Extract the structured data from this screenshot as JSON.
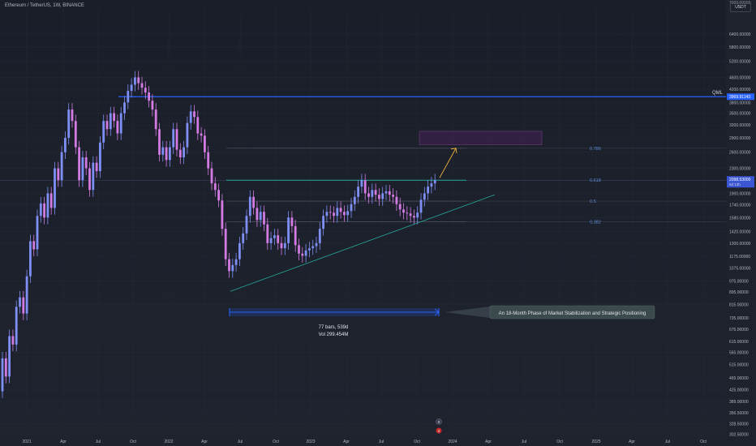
{
  "header": {
    "title": "Ethereum / TetherUS, 1W, BINANCE",
    "currency": "USDT"
  },
  "chart_data": {
    "type": "candlestick",
    "scale": "log",
    "ylim": [
      300,
      7800
    ],
    "price_ticks": [
      6400,
      5800,
      5200,
      4600,
      4200,
      3800,
      3500,
      3200,
      2900,
      2600,
      2300,
      1900,
      1740,
      1580,
      1420,
      1300,
      1175,
      1075,
      975,
      895,
      815,
      735,
      675,
      615,
      565,
      515,
      465,
      425,
      389,
      356.5,
      328.5,
      302.5
    ],
    "price_tick_labels": [
      "6400.00000",
      "5800.00000",
      "5200.00000",
      "4600.00000",
      "4200.00000",
      "3800.00000",
      "3500.00000",
      "3200.00000",
      "2900.00000",
      "2600.00000",
      "2300.00000",
      "1900.00000",
      "1740.00000",
      "1580.00000",
      "1420.00000",
      "1300.00000",
      "1175.00000",
      "1075.00000",
      "975.00000",
      "895.00000",
      "815.00000",
      "735.00000",
      "675.00000",
      "615.00000",
      "565.00000",
      "515.00000",
      "465.00000",
      "425.00000",
      "389.00000",
      "356.50000",
      "328.50000",
      "302.50000"
    ],
    "top_partial_tick": "7000.00000",
    "time_labels": [
      "2021",
      "Apr",
      "Jul",
      "Oct",
      "2022",
      "Apr",
      "Jul",
      "Oct",
      "2023",
      "Apr",
      "Jul",
      "Oct",
      "2024",
      "Apr",
      "Jul",
      "Oct",
      "2025",
      "Apr",
      "Jul",
      "Oct"
    ],
    "candles": [
      [
        0,
        420,
        540
      ],
      [
        1,
        540,
        470
      ],
      [
        2,
        470,
        640
      ],
      [
        3,
        640,
        600
      ],
      [
        4,
        600,
        800
      ],
      [
        5,
        800,
        860
      ],
      [
        6,
        860,
        760
      ],
      [
        7,
        760,
        1010
      ],
      [
        8,
        1010,
        1320
      ],
      [
        9,
        1320,
        1240
      ],
      [
        10,
        1240,
        1600
      ],
      [
        11,
        1600,
        1760
      ],
      [
        12,
        1760,
        1580
      ],
      [
        13,
        1580,
        1900
      ],
      [
        14,
        1900,
        1700
      ],
      [
        15,
        1700,
        2300
      ],
      [
        16,
        2300,
        2100
      ],
      [
        17,
        2100,
        2600
      ],
      [
        18,
        2600,
        2900
      ],
      [
        19,
        2900,
        3600
      ],
      [
        20,
        3600,
        3300
      ],
      [
        21,
        3300,
        2700
      ],
      [
        22,
        2700,
        2100
      ],
      [
        23,
        2100,
        2500
      ],
      [
        24,
        2500,
        2300
      ],
      [
        25,
        2300,
        1950
      ],
      [
        26,
        1950,
        2400
      ],
      [
        27,
        2400,
        2250
      ],
      [
        28,
        2250,
        2800
      ],
      [
        29,
        2800,
        3300
      ],
      [
        30,
        3300,
        3100
      ],
      [
        31,
        3100,
        3500
      ],
      [
        32,
        3500,
        3300
      ],
      [
        33,
        3300,
        3000
      ],
      [
        34,
        3000,
        3500
      ],
      [
        35,
        3500,
        3800
      ],
      [
        36,
        3800,
        4150
      ],
      [
        37,
        4150,
        4350
      ],
      [
        38,
        4350,
        4600
      ],
      [
        39,
        4600,
        4400
      ],
      [
        40,
        4400,
        4250
      ],
      [
        41,
        4250,
        4100
      ],
      [
        42,
        4100,
        3850
      ],
      [
        43,
        3850,
        3600
      ],
      [
        44,
        3600,
        3100
      ],
      [
        45,
        3100,
        2550
      ],
      [
        46,
        2550,
        2700
      ],
      [
        47,
        2700,
        2450
      ],
      [
        48,
        2450,
        2700
      ],
      [
        49,
        2700,
        3100
      ],
      [
        50,
        3100,
        2650
      ],
      [
        51,
        2650,
        2500
      ],
      [
        52,
        2500,
        2700
      ],
      [
        53,
        2700,
        3250
      ],
      [
        54,
        3250,
        3550
      ],
      [
        55,
        3550,
        3400
      ],
      [
        56,
        3400,
        3000
      ],
      [
        57,
        3000,
        2950
      ],
      [
        58,
        2950,
        2600
      ],
      [
        59,
        2600,
        2300
      ],
      [
        60,
        2300,
        2050
      ],
      [
        61,
        2050,
        1950
      ],
      [
        62,
        1950,
        1800
      ],
      [
        63,
        1800,
        1450
      ],
      [
        64,
        1450,
        1150
      ],
      [
        65,
        1150,
        1050
      ],
      [
        66,
        1050,
        1100
      ],
      [
        67,
        1100,
        1150
      ],
      [
        68,
        1150,
        1300
      ],
      [
        69,
        1300,
        1400
      ],
      [
        70,
        1400,
        1600
      ],
      [
        71,
        1600,
        1850
      ],
      [
        72,
        1850,
        1700
      ],
      [
        73,
        1700,
        1550
      ],
      [
        74,
        1550,
        1650
      ],
      [
        75,
        1650,
        1500
      ],
      [
        76,
        1500,
        1300
      ],
      [
        77,
        1300,
        1350
      ],
      [
        78,
        1350,
        1380
      ],
      [
        79,
        1380,
        1300
      ],
      [
        80,
        1300,
        1250
      ],
      [
        81,
        1250,
        1300
      ],
      [
        82,
        1300,
        1580
      ],
      [
        83,
        1580,
        1480
      ],
      [
        84,
        1480,
        1280
      ],
      [
        85,
        1280,
        1200
      ],
      [
        86,
        1200,
        1180
      ],
      [
        87,
        1180,
        1230
      ],
      [
        88,
        1230,
        1250
      ],
      [
        89,
        1250,
        1270
      ],
      [
        90,
        1270,
        1300
      ],
      [
        91,
        1300,
        1450
      ],
      [
        92,
        1450,
        1600
      ],
      [
        93,
        1600,
        1650
      ],
      [
        94,
        1650,
        1640
      ],
      [
        95,
        1640,
        1600
      ],
      [
        96,
        1600,
        1700
      ],
      [
        97,
        1700,
        1650
      ],
      [
        98,
        1650,
        1610
      ],
      [
        99,
        1610,
        1660
      ],
      [
        100,
        1660,
        1750
      ],
      [
        101,
        1750,
        1850
      ],
      [
        102,
        1850,
        2000
      ],
      [
        103,
        2000,
        2100
      ],
      [
        104,
        2100,
        1900
      ],
      [
        105,
        1900,
        1850
      ],
      [
        106,
        1850,
        1950
      ],
      [
        107,
        1950,
        1880
      ],
      [
        108,
        1880,
        1820
      ],
      [
        109,
        1820,
        1900
      ],
      [
        110,
        1900,
        1930
      ],
      [
        111,
        1930,
        1880
      ],
      [
        112,
        1880,
        1850
      ],
      [
        113,
        1850,
        1750
      ],
      [
        114,
        1750,
        1680
      ],
      [
        115,
        1680,
        1640
      ],
      [
        116,
        1640,
        1630
      ],
      [
        117,
        1630,
        1600
      ],
      [
        118,
        1600,
        1580
      ],
      [
        119,
        1580,
        1640
      ],
      [
        120,
        1640,
        1810
      ],
      [
        121,
        1810,
        1900
      ],
      [
        122,
        1900,
        2000
      ],
      [
        123,
        2000,
        2050
      ],
      [
        124,
        2050,
        2100
      ]
    ],
    "current_price": {
      "label": "2098.53000",
      "sublabel": "5d 13h"
    },
    "qml": {
      "price_label": "3969.91143",
      "text": "QML",
      "price": 3970
    },
    "fibonacci": [
      {
        "level": "0.786",
        "price": 2680
      },
      {
        "level": "0.618",
        "price": 2100
      },
      {
        "level": "0.5",
        "price": 1790
      },
      {
        "level": "0.382",
        "price": 1530
      }
    ],
    "target_box": {
      "price_top": 3050,
      "price_bottom": 2750
    },
    "measure": {
      "line1": "77 bars, 539d",
      "line2": "Vol 299.454M"
    },
    "annotation": "An 18-Month Phase of Market Stabilization and Strategic Positioning",
    "event_markers": [
      "8",
      "2"
    ]
  },
  "colors": {
    "bull": "#7e8ff5",
    "bear": "#d37be3",
    "fib": "#5a8dd6",
    "trend": "#26a69a",
    "qml": "#2962ff",
    "arrow": "#f5b83c"
  }
}
